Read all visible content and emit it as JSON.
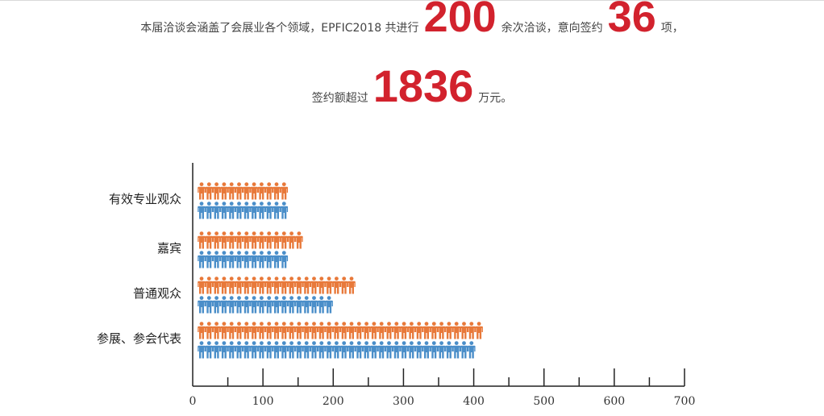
{
  "summary": {
    "line1": {
      "t1": "本届洽谈会涵盖了会展业各个领域，EPFIC2018 共进行",
      "n1": "200",
      "t2": "余次洽谈，意向签约",
      "n2": "36",
      "t3": "项，"
    },
    "line2": {
      "t1": "签约额超过",
      "n1": "1836",
      "t2": "万元。"
    },
    "accent_color": "#d2222d"
  },
  "chart_data": {
    "type": "bar",
    "orientation": "horizontal",
    "bar_style": "pictograph-person-icons",
    "categories": [
      "有效专业观众",
      "嘉宾",
      "普通观众",
      "参展、参会代表"
    ],
    "series": [
      {
        "color": "#e8793a",
        "values": [
          140,
          160,
          235,
          410
        ]
      },
      {
        "color": "#4a8ec9",
        "values": [
          140,
          140,
          195,
          400
        ]
      }
    ],
    "xlim": [
      0,
      700
    ],
    "x_ticks": [
      0,
      100,
      200,
      300,
      400,
      500,
      600,
      700
    ],
    "grid": false,
    "legend": "none"
  }
}
